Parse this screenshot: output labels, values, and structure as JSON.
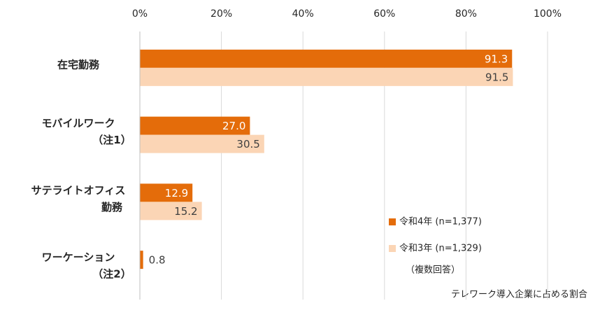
{
  "chart_data": {
    "type": "bar",
    "orientation": "horizontal",
    "categories": [
      [
        "在宅勤務"
      ],
      [
        "モバイルワーク",
        "（注1）"
      ],
      [
        "サテライトオフィス",
        "勤務"
      ],
      [
        "ワーケーション",
        "（注2）"
      ]
    ],
    "series": [
      {
        "name": "令和4年 (n=1,377)",
        "color": "#e46c0a",
        "values": [
          91.3,
          27.0,
          12.9,
          0.8
        ],
        "value_labels": [
          "91.3",
          "27.0",
          "12.9",
          "0.8"
        ]
      },
      {
        "name": "令和3年 (n=1,329)",
        "color": "#fbd5b5",
        "values": [
          91.5,
          30.5,
          15.2,
          null
        ],
        "value_labels": [
          "91.5",
          "30.5",
          "15.2",
          null
        ]
      }
    ],
    "xlim": [
      0,
      100
    ],
    "xticks": [
      {
        "value": 0,
        "label": "0%"
      },
      {
        "value": 20,
        "label": "20%"
      },
      {
        "value": 40,
        "label": "40%"
      },
      {
        "value": 60,
        "label": "60%"
      },
      {
        "value": 80,
        "label": "80%"
      },
      {
        "value": 100,
        "label": "100%"
      }
    ],
    "grid": true,
    "legend_note": "（複数回答）",
    "footnote": "テレワーク導入企業に占める割合"
  }
}
